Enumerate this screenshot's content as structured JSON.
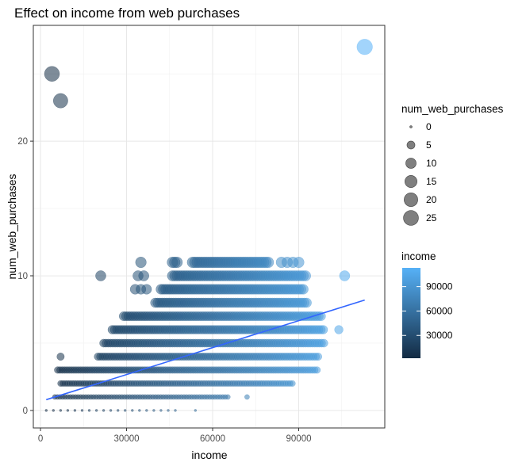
{
  "chart_data": {
    "type": "scatter",
    "title": "Effect on income from web purchases",
    "xlabel": "income",
    "ylabel": "num_web_purchases",
    "xlim": [
      -2500,
      120000
    ],
    "ylim": [
      -1.3,
      28.6
    ],
    "x_ticks": [
      0,
      30000,
      60000,
      90000
    ],
    "x_tick_labels": [
      "0",
      "30000",
      "60000",
      "90000"
    ],
    "y_ticks": [
      0,
      10,
      20
    ],
    "y_tick_labels": [
      "0",
      "10",
      "20"
    ],
    "grid": true,
    "size_legend": {
      "title": "num_web_purchases",
      "values": [
        0,
        5,
        10,
        15,
        20,
        25
      ],
      "labels": [
        "0",
        "5",
        "10",
        "15",
        "20",
        "25"
      ]
    },
    "color_legend": {
      "title": "income",
      "range": [
        2000,
        113000
      ],
      "ticks": [
        30000,
        60000,
        90000
      ],
      "labels": [
        "30000",
        "60000",
        "90000"
      ],
      "low_color": "#132b43",
      "high_color": "#56b1f7"
    },
    "point_ranges": [
      {
        "y": 0,
        "x_start": 2000,
        "x_end": 48000,
        "step": 2500
      },
      {
        "y": 0,
        "x_start": 54000,
        "x_end": 54000,
        "step": 2500
      },
      {
        "y": 1,
        "x_start": 5000,
        "x_end": 66000,
        "step": 900
      },
      {
        "y": 1,
        "x_start": 72000,
        "x_end": 72000,
        "step": 900
      },
      {
        "y": 2,
        "x_start": 7000,
        "x_end": 88000,
        "step": 800
      },
      {
        "y": 3,
        "x_start": 6000,
        "x_end": 97000,
        "step": 800
      },
      {
        "y": 4,
        "x_start": 7000,
        "x_end": 7000,
        "step": 800
      },
      {
        "y": 4,
        "x_start": 20000,
        "x_end": 97000,
        "step": 800
      },
      {
        "y": 5,
        "x_start": 22000,
        "x_end": 99000,
        "step": 800
      },
      {
        "y": 6,
        "x_start": 25000,
        "x_end": 99000,
        "step": 800
      },
      {
        "y": 6,
        "x_start": 104000,
        "x_end": 104000,
        "step": 800
      },
      {
        "y": 7,
        "x_start": 29000,
        "x_end": 98000,
        "step": 800
      },
      {
        "y": 8,
        "x_start": 40000,
        "x_end": 93000,
        "step": 800
      },
      {
        "y": 9,
        "x_start": 33000,
        "x_end": 37000,
        "step": 2000
      },
      {
        "y": 9,
        "x_start": 42000,
        "x_end": 92000,
        "step": 800
      },
      {
        "y": 10,
        "x_start": 21000,
        "x_end": 21000,
        "step": 800
      },
      {
        "y": 10,
        "x_start": 34000,
        "x_end": 36000,
        "step": 2000
      },
      {
        "y": 10,
        "x_start": 46000,
        "x_end": 93000,
        "step": 800
      },
      {
        "y": 10,
        "x_start": 106000,
        "x_end": 106000,
        "step": 800
      },
      {
        "y": 11,
        "x_start": 35000,
        "x_end": 35000,
        "step": 800
      },
      {
        "y": 11,
        "x_start": 46000,
        "x_end": 48000,
        "step": 800
      },
      {
        "y": 11,
        "x_start": 53000,
        "x_end": 80000,
        "step": 800
      },
      {
        "y": 11,
        "x_start": 84000,
        "x_end": 90000,
        "step": 2000
      }
    ],
    "outliers": [
      {
        "x": 4000,
        "y": 25
      },
      {
        "x": 7000,
        "y": 23
      },
      {
        "x": 113000,
        "y": 27
      }
    ],
    "trend_line": {
      "color": "#3366ff",
      "points": [
        [
          2000,
          0.8
        ],
        [
          113000,
          8.2
        ]
      ]
    }
  }
}
